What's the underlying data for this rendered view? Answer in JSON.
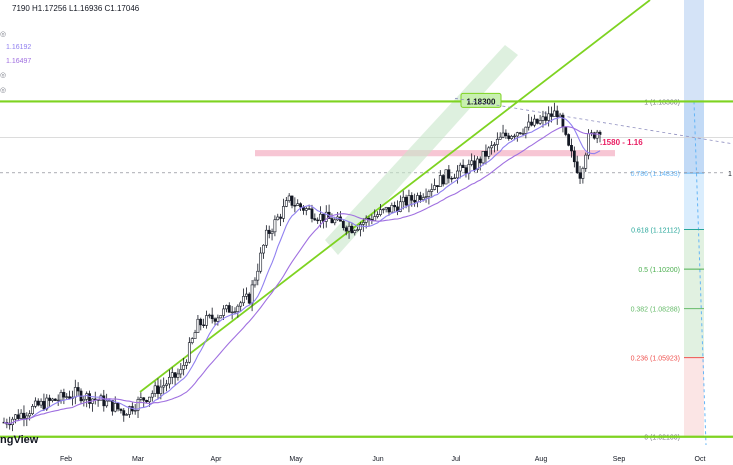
{
  "header": {
    "ohlc": "7190  H1.17256  L1.16936  C1.17046",
    "ma1_value": "1.16192",
    "ma2_value": "1.16497"
  },
  "logo_text": "ngView",
  "colors": {
    "up": "#ffffff",
    "down": "#131722",
    "ma_fast": "#9080f0",
    "ma_slow": "#a070e0",
    "trend_green": "#7ed321",
    "resistance": "#f2a0b8",
    "fib_blue_shade": "#bbdefb",
    "fib_green_shade": "#c8e6c9",
    "fib_red_shade": "#f8d0d0"
  },
  "icons": [
    "eye-icon",
    "eye-icon",
    "eye-icon",
    "eye-icon"
  ],
  "chart_data": {
    "type": "candlestick",
    "instrument_ohlc": {
      "high": 1.17256,
      "low": 1.16936,
      "close": 1.17046
    },
    "x_tick_labels": [
      "Feb",
      "Mar",
      "Apr",
      "May",
      "Jun",
      "Jul",
      "Aug",
      "Sep",
      "Oct"
    ],
    "ylim": [
      1.017,
      1.232
    ],
    "fibonacci": {
      "levels": [
        {
          "ratio": "1",
          "price": 1.183,
          "label": "1 (1.18300)",
          "color": "#787b86"
        },
        {
          "ratio": "0.786",
          "price": 1.14833,
          "label": "0.786 (1.14833)",
          "color": "#64b5f6"
        },
        {
          "ratio": "0.618",
          "price": 1.12112,
          "label": "0.618 (1.12112)",
          "color": "#26a69a"
        },
        {
          "ratio": "0.5",
          "price": 1.102,
          "label": "0.5 (1.10200)",
          "color": "#4caf50"
        },
        {
          "ratio": "0.382",
          "price": 1.08288,
          "label": "0.382 (1.08288)",
          "color": "#66bb6a"
        },
        {
          "ratio": "0.236",
          "price": 1.05923,
          "label": "0.236 (1.05923)",
          "color": "#ef5350"
        },
        {
          "ratio": "0",
          "price": 1.021,
          "label": "0 (1.02100)",
          "color": "#787b86"
        }
      ]
    },
    "horizontal_lines": [
      {
        "price": 1.183,
        "label": "1.18300",
        "color": "#7ed321"
      },
      {
        "price": 1.021,
        "label": "",
        "color": "#7ed321"
      }
    ],
    "resistance_zone": {
      "price_low": 1.1565,
      "price_high": 1.1595,
      "label": ".1580 - 1.16"
    },
    "dashed_reference_price": 1.1485,
    "dashed_reference_label": "1"
  }
}
